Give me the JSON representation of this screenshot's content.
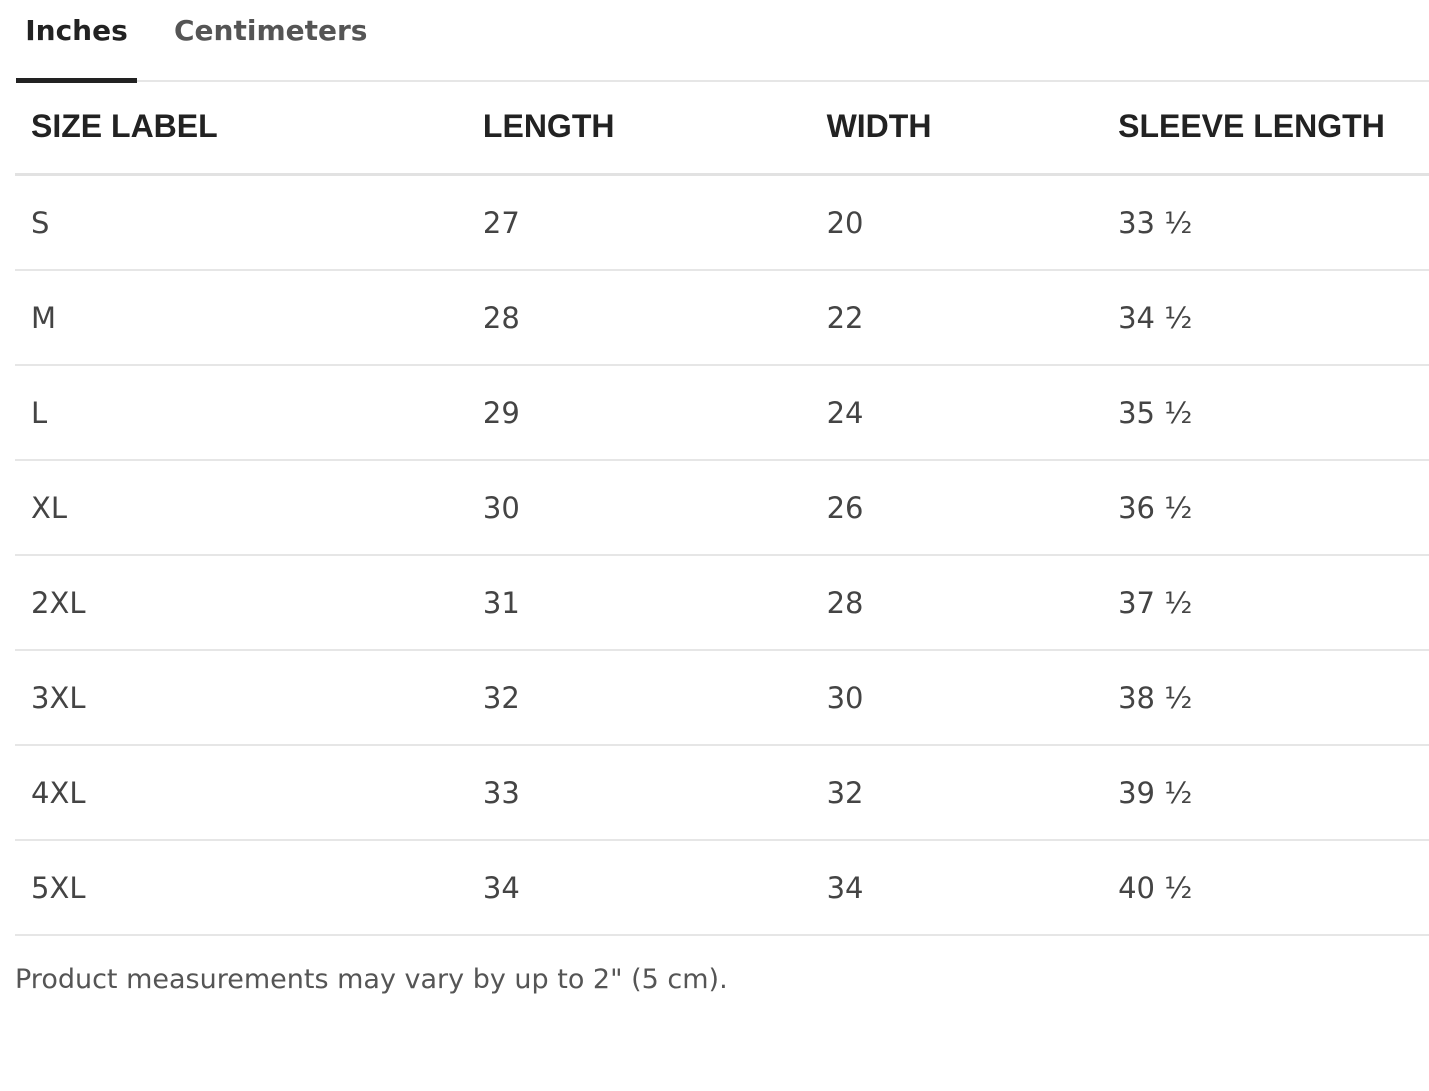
{
  "tabs": [
    "Inches",
    "Centimeters"
  ],
  "table": {
    "headers": [
      "SIZE LABEL",
      "LENGTH",
      "WIDTH",
      "SLEEVE LENGTH"
    ],
    "rows": [
      [
        "S",
        "27",
        "20",
        "33 ½"
      ],
      [
        "M",
        "28",
        "22",
        "34 ½"
      ],
      [
        "L",
        "29",
        "24",
        "35 ½"
      ],
      [
        "XL",
        "30",
        "26",
        "36 ½"
      ],
      [
        "2XL",
        "31",
        "28",
        "37 ½"
      ],
      [
        "3XL",
        "32",
        "30",
        "38 ½"
      ],
      [
        "4XL",
        "33",
        "32",
        "39 ½"
      ],
      [
        "5XL",
        "34",
        "34",
        "40 ½"
      ]
    ]
  },
  "note": "Product measurements may vary by up to 2\" (5 cm)."
}
